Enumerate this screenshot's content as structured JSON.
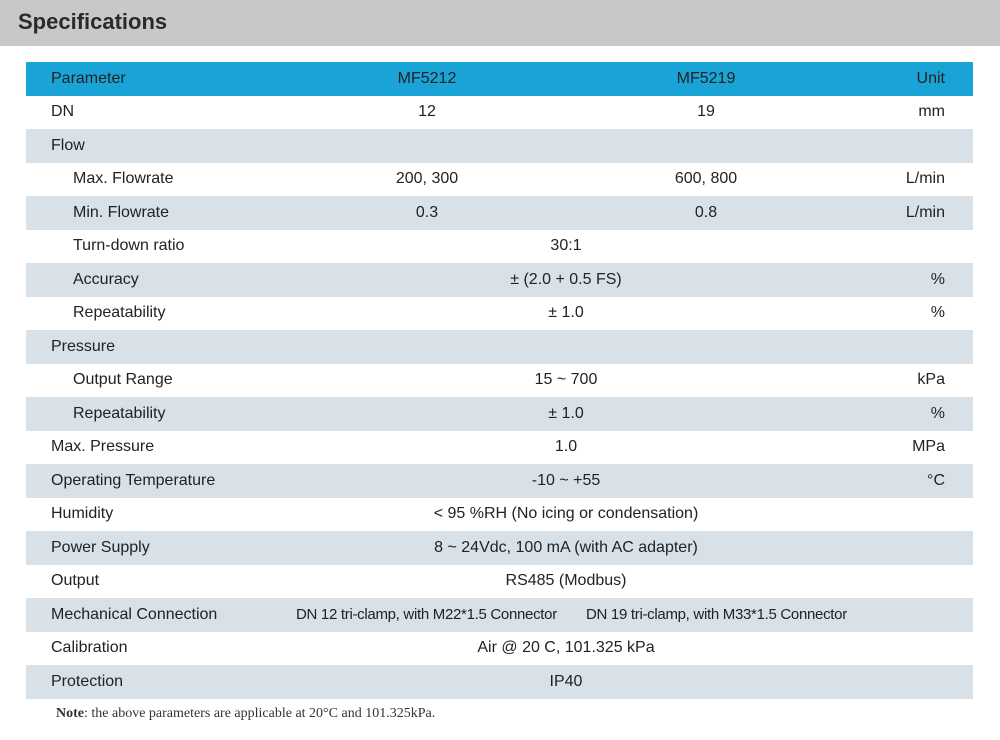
{
  "page": {
    "title": "Specifications"
  },
  "table": {
    "headers": {
      "parameter": "Parameter",
      "model_a": "MF5212",
      "model_b": "MF5219",
      "unit": "Unit"
    },
    "rows": [
      {
        "param": "DN",
        "a": "12",
        "b": "19",
        "unit": "mm"
      },
      {
        "param": "Flow"
      },
      {
        "param": "Max. Flowrate",
        "a": "200, 300",
        "b": "600, 800",
        "unit": "L/min"
      },
      {
        "param": "Min. Flowrate",
        "a": "0.3",
        "b": "0.8",
        "unit": "L/min"
      },
      {
        "param": "Turn-down ratio",
        "span": "30:1"
      },
      {
        "param": "Accuracy",
        "span": "± (2.0 + 0.5 FS)",
        "unit": "%"
      },
      {
        "param": "Repeatability",
        "span": "± 1.0",
        "unit": "%"
      },
      {
        "param": "Pressure"
      },
      {
        "param": "Output Range",
        "span": "15 ~ 700",
        "unit": "kPa"
      },
      {
        "param": "Repeatability",
        "span": "± 1.0",
        "unit": "%"
      },
      {
        "param": "Max. Pressure",
        "span": "1.0",
        "unit": "MPa"
      },
      {
        "param": "Operating Temperature",
        "span": "-10 ~ +55",
        "unit": "°C"
      },
      {
        "param": "Humidity",
        "span": "< 95 %RH (No icing or condensation)"
      },
      {
        "param": "Power Supply",
        "span": "8 ~ 24Vdc, 100 mA (with AC adapter)"
      },
      {
        "param": "Output",
        "span": "RS485 (Modbus)"
      },
      {
        "param": "Mechanical Connection",
        "a": "DN 12 tri-clamp, with M22*1.5 Connector",
        "b": "DN 19 tri-clamp, with M33*1.5 Connector"
      },
      {
        "param": "Calibration",
        "span": "Air @ 20 C, 101.325 kPa"
      },
      {
        "param": "Protection",
        "span": "IP40"
      }
    ]
  },
  "note": {
    "label": "Note",
    "text": ": the above parameters are applicable at 20°C and 101.325kPa."
  },
  "colors": {
    "header_bar": "#c8c8c8",
    "table_head": "#1aa3d6",
    "row_shade": "#d9e1e8"
  }
}
